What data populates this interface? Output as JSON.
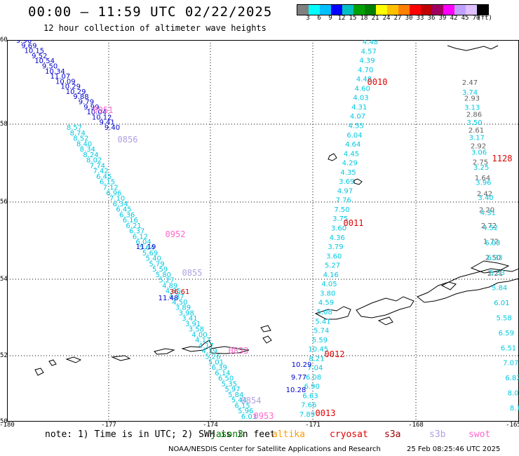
{
  "header": {
    "title": "00:00 – 11:59 UTC 02/22/2025",
    "subtitle": "12 hour collection of altimeter wave heights"
  },
  "colorbar": {
    "colors": [
      "#808080",
      "#00ffff",
      "#00bfff",
      "#0000ff",
      "#00c0c0",
      "#00a000",
      "#008000",
      "#ffff00",
      "#ffc000",
      "#ff8000",
      "#ff0000",
      "#c00000",
      "#a00060",
      "#ff00ff",
      "#c0a0ff",
      "#e0c0ff",
      "#000000"
    ],
    "labels": [
      "3",
      "6",
      "9",
      "12",
      "15",
      "18",
      "21",
      "24",
      "27",
      "30",
      "33",
      "36",
      "39",
      "42",
      "45",
      "70",
      "(ft)"
    ]
  },
  "axes": {
    "lat_labels": [
      "60",
      "58",
      "56",
      "54",
      "52",
      "50"
    ],
    "lon_labels": [
      "-180",
      "-177",
      "-174",
      "-171",
      "-168",
      "-165"
    ]
  },
  "tracks": [
    {
      "color": "#0000cc",
      "values": [
        "9.96",
        "9.69",
        "10.15",
        "9.52",
        "10.54",
        "9.50",
        "10.34",
        "11.07",
        "10.09",
        "10.29",
        "10.29",
        "9.88",
        "9.79",
        "9.99",
        "10.04",
        "10.12",
        "9.41",
        "9.40"
      ]
    },
    {
      "color": "#00c8e0",
      "values": [
        "8.57",
        "8.74",
        "8.52",
        "8.40",
        "8.34",
        "8.24",
        "8.02",
        "7.74",
        "7.42",
        "6.45",
        "6.15",
        "7.12",
        "6.96",
        "7.10",
        "6.34",
        "6.45",
        "6.36",
        "6.16",
        "6.21",
        "6.37",
        "6.12",
        "6.04",
        "5.64",
        "5.69",
        "5.40",
        "5.79",
        "5.59",
        "5.80",
        "5.27",
        "4.89",
        "4.85",
        "4.37",
        "4.50",
        "3.89",
        "3.98",
        "3.41",
        "3.91",
        "3.58",
        "4.00",
        "4.17",
        "4.17",
        "4.39",
        "5.26",
        "5.01",
        "6.39",
        "6.14",
        "6.50",
        "5.35",
        "5.97",
        "5.84",
        "5.44",
        "6.15",
        "5.96",
        "6.03"
      ]
    },
    {
      "color": "#0000cc",
      "values": [
        "11.19",
        "11.48"
      ]
    },
    {
      "color": "#00c8e0",
      "values": [
        "4.48",
        "4.57",
        "4.39",
        "4.70",
        "4.48",
        "4.60",
        "4.03",
        "4.31",
        "4.07",
        "4.55",
        "6.04",
        "4.64",
        "4.45",
        "4.29",
        "4.35",
        "3.69",
        "4.97",
        "7.76",
        "7.50",
        "3.75",
        "3.60",
        "4.36",
        "3.79",
        "3.60",
        "5.27",
        "4.16",
        "4.05",
        "3.80",
        "4.59",
        "5.08",
        "5.41",
        "5.74",
        "5.59",
        "10.45",
        "8.21",
        "7.04",
        "6.08",
        "6.90",
        "6.63",
        "7.66",
        "7.89"
      ]
    },
    {
      "color": "#0000cc",
      "values": [
        "10.29",
        "9.77",
        "10.28"
      ]
    },
    {
      "color": "#606060",
      "values": [
        "2.47",
        "2.93",
        "2.86",
        "2.61",
        "2.92",
        "2.75",
        "1.64",
        "2.42",
        "2.20",
        "2.72",
        "1.72",
        "2.50",
        "2.21"
      ]
    },
    {
      "color": "#00c8e0",
      "values": [
        "3.74",
        "3.13",
        "3.50",
        "3.17",
        "3.06",
        "3.25",
        "3.96",
        "3.40",
        "4.31",
        "4.52",
        "6.03",
        "6.23",
        "5.33",
        "5.84",
        "6.01",
        "5.58",
        "6.59",
        "6.51",
        "7.07",
        "6.82",
        "8.09",
        "8.10"
      ]
    }
  ],
  "pass_labels": [
    {
      "text": "0951",
      "color": "#ff66cc"
    },
    {
      "text": "0856",
      "color": "#b0a0e0"
    },
    {
      "text": "0952",
      "color": "#ff66cc"
    },
    {
      "text": "0855",
      "color": "#b0a0e0"
    },
    {
      "text": "0853",
      "color": "#ff66cc"
    },
    {
      "text": "0854",
      "color": "#b0a0e0"
    },
    {
      "text": "0953",
      "color": "#ff66cc"
    },
    {
      "text": "0010",
      "color": "#e00000"
    },
    {
      "text": "0011",
      "color": "#e00000"
    },
    {
      "text": "0012",
      "color": "#e00000"
    },
    {
      "text": "0013",
      "color": "#e00000"
    },
    {
      "text": "1128",
      "color": "#e00000"
    }
  ],
  "special_values": [
    {
      "text": "36.61",
      "color": "#c00000"
    }
  ],
  "footer": {
    "note": "note: 1) Time is in UTC; 2) SWH is in feet",
    "legend": [
      {
        "name": "jason3",
        "color": "#008000"
      },
      {
        "name": "altika",
        "color": "#ff9900"
      },
      {
        "name": "cryosat",
        "color": "#e00000"
      },
      {
        "name": "s3a",
        "color": "#a00000"
      },
      {
        "name": "s3b",
        "color": "#b0a0e0"
      },
      {
        "name": "swot",
        "color": "#ff66cc"
      }
    ],
    "credit": "NOAA/NESDIS Center for Satellite Applications and Research",
    "timestamp": "25 Feb 08:25:46 UTC 2025"
  }
}
